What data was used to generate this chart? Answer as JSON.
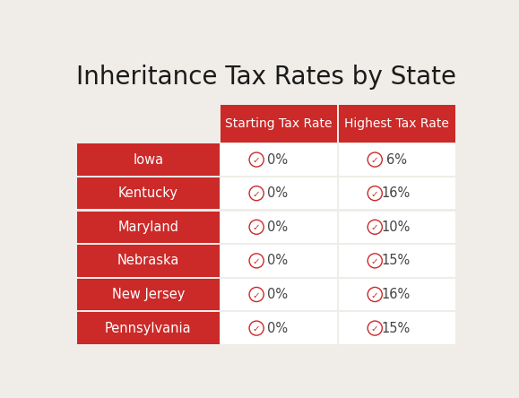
{
  "title": "Inheritance Tax Rates by State",
  "background_color": "#f0ede8",
  "header_bg_color": "#cc2929",
  "header_text_color": "#ffffff",
  "row_bg_color": "#cc2929",
  "row_text_color": "#ffffff",
  "cell_bg_color": "#ffffff",
  "cell_text_color": "#444444",
  "check_color": "#cc2929",
  "divider_color": "#e8e0d8",
  "col_headers": [
    "Starting Tax Rate",
    "Highest Tax Rate"
  ],
  "states": [
    "Iowa",
    "Kentucky",
    "Maryland",
    "Nebraska",
    "New Jersey",
    "Pennsylvania"
  ],
  "starting_rates": [
    "0%",
    "0%",
    "0%",
    "0%",
    "0%",
    "0%"
  ],
  "highest_rates": [
    "6%",
    "16%",
    "10%",
    "15%",
    "16%",
    "15%"
  ],
  "title_fontsize": 20,
  "header_fontsize": 10,
  "cell_fontsize": 10.5,
  "state_fontsize": 10.5
}
